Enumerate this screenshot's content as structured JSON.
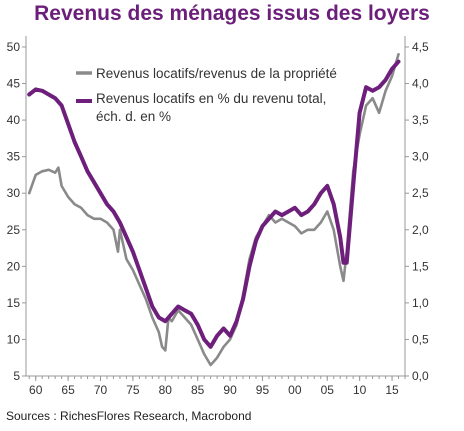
{
  "chart_data": {
    "type": "line",
    "title": "Revenus des ménages issus des loyers",
    "source": "Sources : RichesFlores Research, Macrobond",
    "x_tick_labels": [
      "60",
      "65",
      "70",
      "75",
      "80",
      "85",
      "90",
      "95",
      "00",
      "05",
      "10",
      "15"
    ],
    "x_tick_years": [
      1960,
      1965,
      1970,
      1975,
      1980,
      1985,
      1990,
      1995,
      2000,
      2005,
      2010,
      2015
    ],
    "xlim": [
      1958.5,
      2017
    ],
    "y_left": {
      "lim": [
        5,
        51.5
      ],
      "ticks": [
        "5",
        "10",
        "15",
        "20",
        "25",
        "30",
        "35",
        "40",
        "45",
        "50"
      ]
    },
    "y_right": {
      "lim": [
        0,
        4.65
      ],
      "ticks": [
        "0,0",
        "0,5",
        "1,0",
        "1,5",
        "2,0",
        "2,5",
        "3,0",
        "3,5",
        "4,0",
        "4,5"
      ]
    },
    "legend_position": "top-center",
    "colors": {
      "gray": "#8a8a8a",
      "purple": "#6e1f7b",
      "title": "#6b1e7a"
    },
    "series": [
      {
        "name": "Revenus locatifs/revenus de la propriété",
        "axis": "left",
        "color": "#8a8a8a",
        "x": [
          1959.0,
          1960.0,
          1961.0,
          1962.0,
          1963.0,
          1963.5,
          1964.0,
          1965.0,
          1966.0,
          1967.0,
          1968.0,
          1969.0,
          1970.0,
          1971.0,
          1972.0,
          1972.7,
          1973.0,
          1973.5,
          1974.0,
          1975.0,
          1976.0,
          1977.0,
          1978.0,
          1979.0,
          1979.5,
          1980.0,
          1980.5,
          1981.0,
          1982.0,
          1983.0,
          1984.0,
          1985.0,
          1986.0,
          1987.0,
          1987.5,
          1988.0,
          1989.0,
          1990.0,
          1991.0,
          1992.0,
          1993.0,
          1994.0,
          1995.0,
          1996.0,
          1997.0,
          1998.0,
          1999.0,
          2000.0,
          2001.0,
          2002.0,
          2003.0,
          2004.0,
          2005.0,
          2006.0,
          2007.0,
          2007.5,
          2008.0,
          2009.0,
          2010.0,
          2011.0,
          2012.0,
          2013.0,
          2014.0,
          2015.0,
          2016.0
        ],
        "y": [
          30.0,
          32.5,
          33.0,
          33.2,
          32.8,
          33.5,
          31.0,
          29.5,
          28.5,
          28.0,
          27.0,
          26.5,
          26.5,
          26.0,
          25.0,
          22.0,
          25.0,
          23.0,
          21.0,
          19.5,
          17.5,
          15.5,
          13.0,
          11.0,
          9.0,
          8.5,
          13.0,
          12.5,
          14.0,
          13.0,
          12.0,
          10.0,
          8.0,
          6.5,
          7.0,
          7.5,
          9.0,
          10.0,
          12.0,
          16.0,
          21.0,
          24.0,
          25.5,
          27.0,
          26.0,
          26.5,
          26.0,
          25.5,
          24.5,
          25.0,
          25.0,
          26.0,
          27.5,
          25.0,
          20.0,
          18.0,
          22.0,
          33.0,
          38.0,
          42.0,
          43.0,
          41.0,
          44.0,
          46.0,
          49.0
        ]
      },
      {
        "name": "Revenus locatifs en % du revenu total, éch. d. en %",
        "axis": "right",
        "color": "#6e1f7b",
        "x": [
          1959.0,
          1960.0,
          1961.0,
          1962.0,
          1963.0,
          1964.0,
          1965.0,
          1966.0,
          1967.0,
          1968.0,
          1969.0,
          1970.0,
          1971.0,
          1972.0,
          1973.0,
          1974.0,
          1975.0,
          1976.0,
          1977.0,
          1978.0,
          1979.0,
          1980.0,
          1981.0,
          1982.0,
          1983.0,
          1984.0,
          1985.0,
          1986.0,
          1987.0,
          1988.0,
          1989.0,
          1990.0,
          1991.0,
          1992.0,
          1993.0,
          1994.0,
          1995.0,
          1996.0,
          1997.0,
          1998.0,
          1999.0,
          2000.0,
          2001.0,
          2002.0,
          2003.0,
          2004.0,
          2005.0,
          2006.0,
          2007.0,
          2007.5,
          2008.0,
          2009.0,
          2010.0,
          2011.0,
          2012.0,
          2013.0,
          2014.0,
          2015.0,
          2016.0
        ],
        "y": [
          3.85,
          3.92,
          3.9,
          3.85,
          3.8,
          3.7,
          3.45,
          3.2,
          3.0,
          2.8,
          2.65,
          2.5,
          2.35,
          2.25,
          2.1,
          1.9,
          1.7,
          1.45,
          1.2,
          0.95,
          0.8,
          0.75,
          0.85,
          0.95,
          0.9,
          0.85,
          0.7,
          0.5,
          0.4,
          0.55,
          0.65,
          0.55,
          0.75,
          1.05,
          1.5,
          1.85,
          2.05,
          2.15,
          2.25,
          2.2,
          2.25,
          2.3,
          2.2,
          2.25,
          2.35,
          2.5,
          2.6,
          2.35,
          1.9,
          1.55,
          1.55,
          2.6,
          3.6,
          3.95,
          3.9,
          3.95,
          4.05,
          4.2,
          4.3
        ]
      }
    ]
  }
}
